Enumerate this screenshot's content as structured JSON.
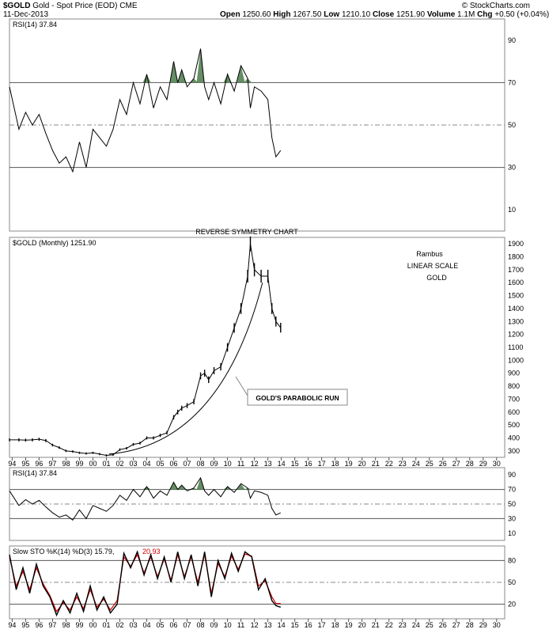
{
  "header": {
    "symbol": "$GOLD",
    "name": "Gold - Spot Price (EOD)",
    "exchange": "CME",
    "date": "11-Dec-2013",
    "brand": "© StockCharts.com",
    "stats": [
      {
        "label": "Open",
        "value": "1250.60"
      },
      {
        "label": "High",
        "value": "1267.50"
      },
      {
        "label": "Low",
        "value": "1210.10"
      },
      {
        "label": "Close",
        "value": "1251.90"
      },
      {
        "label": "Volume",
        "value": "1.1M"
      },
      {
        "label": "Chg",
        "value": "+0.50 (+0.04%)"
      }
    ]
  },
  "colors": {
    "price": "#000000",
    "rsi_fill": "#4a7a4a",
    "sto_d": "#cc0000",
    "grid_dash": "#999999"
  },
  "chart_data": [
    {
      "type": "line",
      "panel": "rsi_top",
      "legend": "RSI(14) 37.84",
      "ylim": [
        0,
        100
      ],
      "yticks": [
        10,
        30,
        50,
        70,
        90
      ],
      "reference_lines": [
        30,
        50,
        70
      ],
      "x": [
        1993.8,
        1994.5,
        1995.0,
        1995.5,
        1996.0,
        1996.5,
        1997.0,
        1997.5,
        1998.0,
        1998.5,
        1999.0,
        1999.5,
        2000.0,
        2000.5,
        2001.0,
        2001.5,
        2002.0,
        2002.5,
        2003.0,
        2003.5,
        2004.0,
        2004.5,
        2005.0,
        2005.5,
        2006.0,
        2006.3,
        2006.6,
        2007.0,
        2007.5,
        2008.0,
        2008.3,
        2008.6,
        2009.0,
        2009.5,
        2010.0,
        2010.5,
        2011.0,
        2011.5,
        2011.7,
        2012.0,
        2012.5,
        2013.0,
        2013.3,
        2013.6,
        2013.95
      ],
      "values": [
        68,
        48,
        56,
        50,
        55,
        46,
        38,
        32,
        35,
        28,
        42,
        30,
        48,
        44,
        40,
        48,
        62,
        55,
        70,
        60,
        74,
        58,
        68,
        62,
        80,
        70,
        76,
        68,
        72,
        86,
        68,
        62,
        70,
        60,
        74,
        66,
        78,
        72,
        58,
        68,
        66,
        62,
        44,
        35,
        38
      ]
    },
    {
      "type": "line",
      "panel": "price_monthly",
      "title": "REVERSE SYMMETRY CHART",
      "legend": "$GOLD (Monthly) 1251.90",
      "ylim": [
        250,
        1950
      ],
      "yticks": [
        300,
        400,
        500,
        600,
        700,
        800,
        900,
        1000,
        1100,
        1200,
        1300,
        1400,
        1500,
        1600,
        1700,
        1800,
        1900
      ],
      "xticks": [
        "94",
        "95",
        "96",
        "97",
        "98",
        "99",
        "00",
        "01",
        "02",
        "03",
        "04",
        "05",
        "06",
        "07",
        "08",
        "09",
        "10",
        "11",
        "12",
        "13",
        "14",
        "15",
        "16",
        "17",
        "18",
        "19",
        "20",
        "21",
        "22",
        "23",
        "24",
        "25",
        "26",
        "27",
        "28",
        "29",
        "30"
      ],
      "annotations": [
        "Rambus",
        "LINEAR SCALE",
        "GOLD",
        "GOLD'S PARABOLIC RUN"
      ],
      "x": [
        1993.8,
        1994.5,
        1995.0,
        1995.5,
        1996.0,
        1996.5,
        1997.0,
        1997.5,
        1998.0,
        1998.5,
        1999.0,
        1999.5,
        2000.0,
        2000.5,
        2001.0,
        2001.5,
        2002.0,
        2002.5,
        2003.0,
        2003.5,
        2004.0,
        2004.5,
        2005.0,
        2005.5,
        2006.0,
        2006.3,
        2006.6,
        2007.0,
        2007.5,
        2008.0,
        2008.3,
        2008.6,
        2009.0,
        2009.5,
        2010.0,
        2010.5,
        2011.0,
        2011.5,
        2011.7,
        2012.0,
        2012.5,
        2013.0,
        2013.3,
        2013.6,
        2013.95
      ],
      "values": [
        385,
        385,
        383,
        385,
        390,
        380,
        345,
        325,
        300,
        295,
        285,
        280,
        285,
        275,
        265,
        270,
        310,
        320,
        350,
        360,
        400,
        400,
        420,
        440,
        560,
        600,
        630,
        650,
        680,
        880,
        900,
        850,
        920,
        950,
        1100,
        1250,
        1400,
        1650,
        1900,
        1700,
        1650,
        1650,
        1400,
        1300,
        1251.9
      ]
    },
    {
      "type": "line",
      "panel": "rsi_mid",
      "legend": "RSI(14) 37.84",
      "ylim": [
        0,
        100
      ],
      "yticks": [
        10,
        30,
        50,
        70,
        90
      ],
      "reference_lines": [
        30,
        50,
        70
      ],
      "x": [
        1993.8,
        1994.5,
        1995.0,
        1995.5,
        1996.0,
        1996.5,
        1997.0,
        1997.5,
        1998.0,
        1998.5,
        1999.0,
        1999.5,
        2000.0,
        2000.5,
        2001.0,
        2001.5,
        2002.0,
        2002.5,
        2003.0,
        2003.5,
        2004.0,
        2004.5,
        2005.0,
        2005.5,
        2006.0,
        2006.3,
        2006.6,
        2007.0,
        2007.5,
        2008.0,
        2008.3,
        2008.6,
        2009.0,
        2009.5,
        2010.0,
        2010.5,
        2011.0,
        2011.5,
        2011.7,
        2012.0,
        2012.5,
        2013.0,
        2013.3,
        2013.6,
        2013.95
      ],
      "values": [
        68,
        48,
        56,
        50,
        55,
        46,
        38,
        32,
        35,
        28,
        42,
        30,
        48,
        44,
        40,
        48,
        62,
        55,
        70,
        60,
        74,
        58,
        68,
        62,
        80,
        70,
        76,
        68,
        72,
        86,
        68,
        62,
        70,
        60,
        74,
        66,
        78,
        72,
        58,
        68,
        66,
        62,
        44,
        35,
        38
      ]
    },
    {
      "type": "line",
      "panel": "slow_sto",
      "legend": "Slow STO %K(14) %D(3) 15.79,",
      "legend_d": "20.93",
      "ylim": [
        0,
        100
      ],
      "yticks": [
        20,
        50,
        80
      ],
      "reference_lines": [
        20,
        50,
        80
      ],
      "x": [
        1993.8,
        1994.3,
        1994.8,
        1995.3,
        1995.8,
        1996.3,
        1996.8,
        1997.3,
        1997.8,
        1998.3,
        1998.8,
        1999.3,
        1999.8,
        2000.3,
        2000.8,
        2001.3,
        2001.8,
        2002.3,
        2002.8,
        2003.3,
        2003.8,
        2004.3,
        2004.8,
        2005.3,
        2005.8,
        2006.3,
        2006.8,
        2007.3,
        2007.8,
        2008.3,
        2008.8,
        2009.3,
        2009.8,
        2010.3,
        2010.8,
        2011.3,
        2011.8,
        2012.3,
        2012.8,
        2013.3,
        2013.6,
        2013.95
      ],
      "k": [
        88,
        40,
        70,
        35,
        75,
        45,
        30,
        5,
        25,
        8,
        35,
        10,
        45,
        12,
        30,
        8,
        20,
        90,
        70,
        92,
        60,
        88,
        55,
        85,
        50,
        92,
        55,
        88,
        45,
        92,
        30,
        80,
        55,
        90,
        65,
        92,
        85,
        40,
        55,
        25,
        18,
        15.79
      ],
      "d": [
        85,
        45,
        65,
        40,
        70,
        48,
        32,
        10,
        22,
        12,
        30,
        14,
        40,
        16,
        27,
        12,
        25,
        85,
        72,
        88,
        63,
        85,
        58,
        82,
        53,
        88,
        58,
        85,
        50,
        88,
        35,
        76,
        58,
        86,
        68,
        89,
        86,
        45,
        52,
        30,
        21,
        20.93
      ]
    }
  ]
}
